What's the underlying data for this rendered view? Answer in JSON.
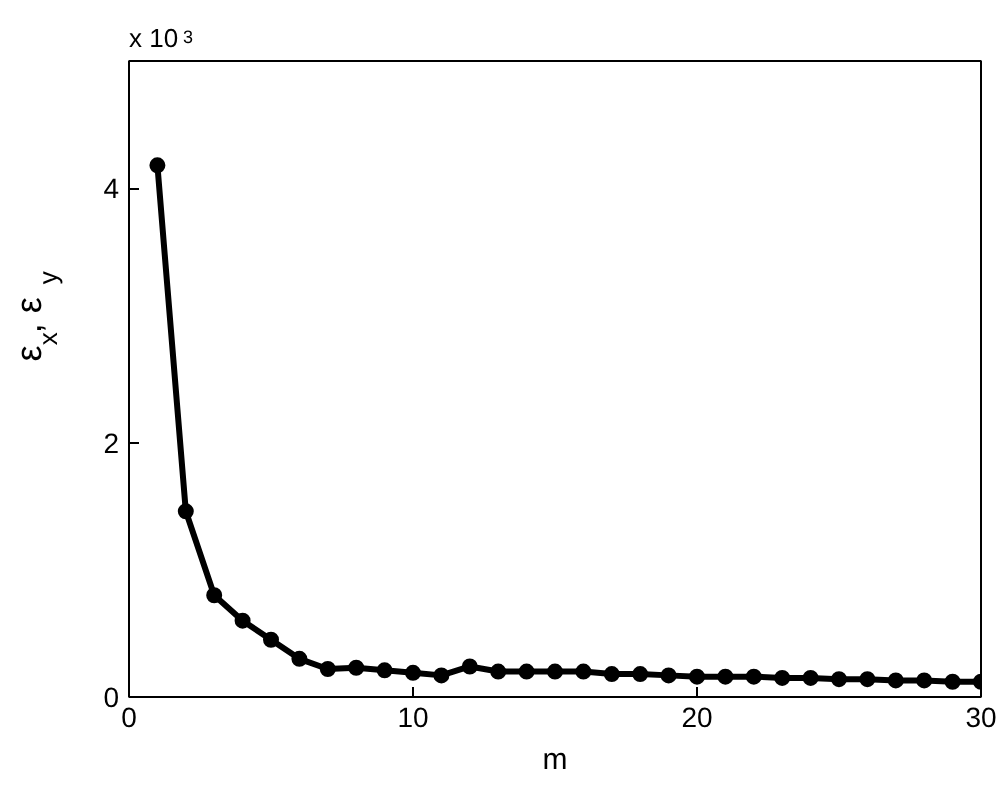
{
  "chart_data": {
    "type": "line",
    "xlabel": "m",
    "ylabel": "ε$_{x}$, ε$_{y}$",
    "annotations": [
      "x 10$^{3}$"
    ],
    "x": [
      1,
      2,
      3,
      4,
      5,
      6,
      7,
      8,
      9,
      10,
      11,
      12,
      13,
      14,
      15,
      16,
      17,
      18,
      19,
      20,
      21,
      22,
      23,
      24,
      25,
      26,
      27,
      28,
      29,
      30
    ],
    "series": [
      {
        "color": "#000000",
        "values": [
          4.18,
          1.46,
          0.8,
          0.6,
          0.45,
          0.3,
          0.22,
          0.23,
          0.21,
          0.19,
          0.17,
          0.24,
          0.2,
          0.2,
          0.2,
          0.2,
          0.18,
          0.18,
          0.17,
          0.16,
          0.16,
          0.16,
          0.15,
          0.15,
          0.14,
          0.14,
          0.13,
          0.13,
          0.12,
          0.12
        ]
      }
    ],
    "xlim": [
      0,
      30
    ],
    "ylim": [
      0,
      5
    ],
    "xticks": [
      0,
      10,
      20,
      30
    ],
    "yticks": [
      0,
      2,
      4
    ],
    "grid": false,
    "marker": "circle",
    "line_style": "solid"
  }
}
